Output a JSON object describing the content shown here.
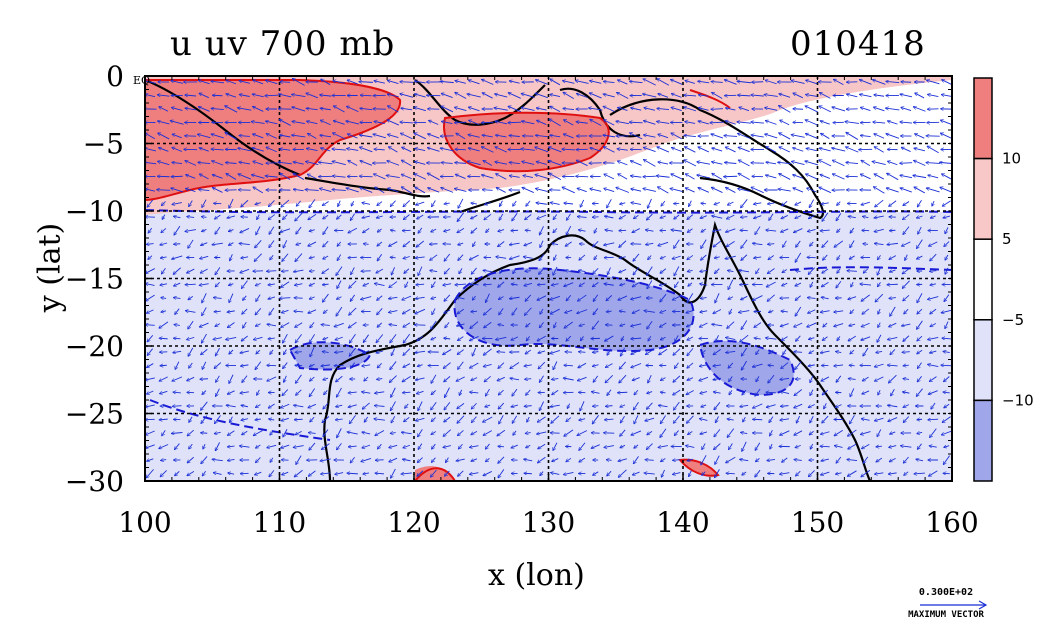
{
  "title": {
    "left": "u uv 700 mb",
    "right": "010418"
  },
  "axes": {
    "xlabel": "x (lon)",
    "ylabel": "y (lat)",
    "xticks": [
      "100",
      "110",
      "120",
      "130",
      "140",
      "150",
      "160"
    ],
    "xtick_values": [
      100,
      110,
      120,
      130,
      140,
      150,
      160
    ],
    "yticks": [
      "0",
      "−5",
      "−10",
      "−15",
      "−20",
      "−25",
      "−30"
    ],
    "ytick_values": [
      0,
      -5,
      -10,
      -15,
      -20,
      -25,
      -30
    ],
    "eq_label": "EQ",
    "xlim": [
      100,
      160
    ],
    "ylim": [
      -30,
      0
    ]
  },
  "colorbar": {
    "labels": [
      "10",
      "5",
      "−5",
      "−10"
    ],
    "colors": [
      "#ef7f7f",
      "#f8c8c8",
      "#ffffff",
      "#dfe2f8",
      "#9fa6ea"
    ]
  },
  "max_vector": {
    "value": "0.300E+02",
    "label": "MAXIMUM VECTOR"
  },
  "map": {
    "positive_color": "#ef7f7f",
    "light_positive_color": "#f7c6c6",
    "negative_color": "#dfe2f8",
    "strong_negative_color": "#9fa6ea",
    "coast_color": "#000000",
    "vector_color": "#1a2fd6",
    "positive_contour_color": "#e01010",
    "negative_contour_color": "#1a1ad6"
  }
}
